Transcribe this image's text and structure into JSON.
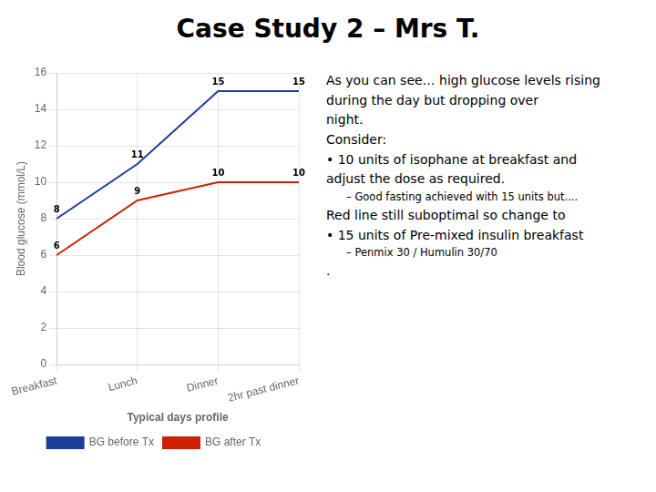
{
  "chart_data": {
    "type": "line",
    "title": "Case Study 2 – Mrs T.",
    "xlabel": "Typical days profile",
    "ylabel": "Blood glucose (mmol/L)",
    "categories": [
      "Breakfast",
      "Lunch",
      "Dinner",
      "2hr past dinner"
    ],
    "series": [
      {
        "name": "BG before Tx",
        "color": "#1a3e9a",
        "values": [
          8,
          11,
          15,
          15
        ]
      },
      {
        "name": "BG after Tx",
        "color": "#cc2200",
        "values": [
          6,
          9,
          10,
          10
        ]
      }
    ],
    "ylim": [
      0,
      16
    ],
    "yticks": [
      0,
      2,
      4,
      6,
      8,
      10,
      12,
      14,
      16
    ],
    "grid": true,
    "legend": "lower center",
    "data_labels": true,
    "annotations": [
      "As you can see… high glucose levels rising",
      "during the day but dropping over",
      "night.",
      "Consider:",
      "• 10 units of isophane at breakfast and",
      "adjust the dose as required.",
      "– Good fasting achieved with 15 units but....",
      "Red line still suboptimal so change to",
      "• 15 units of Pre-mixed insulin breakfast",
      "– Penmix 30 / Humulin 30/70",
      "."
    ]
  }
}
